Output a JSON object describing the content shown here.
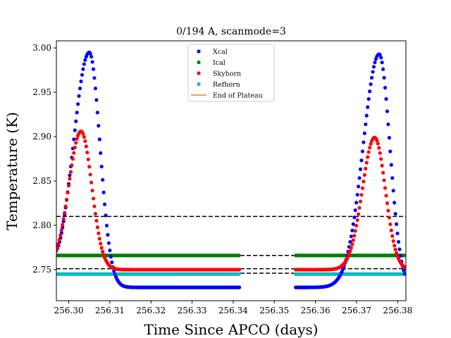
{
  "chart_data": {
    "type": "scatter",
    "title": "0/194 A, scanmode=3",
    "xlabel": "Time Since APCO (days)",
    "ylabel": "Temperature (K)",
    "xlim": [
      256.297,
      256.382
    ],
    "ylim": [
      2.715,
      3.008
    ],
    "x_ticks": [
      256.3,
      256.31,
      256.32,
      256.33,
      256.34,
      256.35,
      256.36,
      256.37,
      256.38
    ],
    "x_tick_labels": [
      "256.30",
      "256.31",
      "256.32",
      "256.33",
      "256.34",
      "256.35",
      "256.36",
      "256.37",
      "256.38"
    ],
    "y_ticks": [
      2.75,
      2.8,
      2.85,
      2.9,
      2.95,
      3.0
    ],
    "y_tick_labels": [
      "2.75",
      "2.80",
      "2.85",
      "2.90",
      "2.95",
      "3.00"
    ],
    "grid": false,
    "legend_position": "top-center",
    "colors": {
      "Xcal": "#0000ff",
      "Ical": "#008000",
      "Skyhorn": "#ff0000",
      "Refhorn": "#00bfbf",
      "End of Plateau": "#ff7f0e",
      "reference": "#000000"
    },
    "series": [
      {
        "name": "Xcal",
        "segments": [
          {
            "x_start": 256.297,
            "x_end": 256.3415,
            "dx": 0.00025,
            "curve": "bump",
            "baseline": 2.73,
            "baseline_start": 2.74,
            "peak_x": 256.305,
            "peak": 2.995,
            "width_left": 0.0039,
            "width_right": 0.0026,
            "decay": 0.0008
          },
          {
            "x_start": 256.3552,
            "x_end": 256.3818,
            "dx": 0.00025,
            "curve": "bump",
            "baseline": 2.73,
            "baseline_start": 2.73,
            "peak_x": 256.3755,
            "peak": 2.993,
            "width_left": 0.0039,
            "width_right": 0.0026,
            "decay": 0.0008
          }
        ]
      },
      {
        "name": "Ical",
        "segments": [
          {
            "x_start": 256.297,
            "x_end": 256.3415,
            "dx": 0.0003,
            "curve": "flat",
            "value": 2.766
          },
          {
            "x_start": 256.3552,
            "x_end": 256.3818,
            "dx": 0.0003,
            "curve": "flat",
            "value": 2.766
          }
        ]
      },
      {
        "name": "Skyhorn",
        "segments": [
          {
            "x_start": 256.297,
            "x_end": 256.3415,
            "dx": 0.00025,
            "curve": "bump",
            "baseline": 2.75,
            "baseline_start": 2.75,
            "peak_x": 256.303,
            "peak": 2.906,
            "width_left": 0.003,
            "width_right": 0.0026,
            "decay": 0.0008
          },
          {
            "x_start": 256.3552,
            "x_end": 256.3818,
            "dx": 0.00025,
            "curve": "bump",
            "baseline": 2.75,
            "baseline_start": 2.75,
            "peak_x": 256.3744,
            "peak": 2.899,
            "width_left": 0.003,
            "width_right": 0.0026,
            "decay": 0.0008
          }
        ]
      },
      {
        "name": "Refhorn",
        "segments": [
          {
            "x_start": 256.297,
            "x_end": 256.3415,
            "dx": 0.0003,
            "curve": "flat",
            "value": 2.745
          },
          {
            "x_start": 256.3552,
            "x_end": 256.3818,
            "dx": 0.0003,
            "curve": "flat",
            "value": 2.745
          }
        ]
      },
      {
        "name": "End of Plateau",
        "segments": []
      }
    ],
    "reference_lines": [
      {
        "y": 2.81,
        "style": "dashed",
        "color": "#000000"
      },
      {
        "y": 2.766,
        "style": "dashed",
        "color": "#000000"
      },
      {
        "y": 2.751,
        "style": "dashed",
        "color": "#000000"
      },
      {
        "y": 2.746,
        "style": "dashed",
        "color": "#000000"
      }
    ],
    "legend": [
      {
        "label": "Xcal",
        "marker": "dot"
      },
      {
        "label": "Ical",
        "marker": "dot"
      },
      {
        "label": "Skyhorn",
        "marker": "dot"
      },
      {
        "label": "Refhorn",
        "marker": "dot"
      },
      {
        "label": "End of Plateau",
        "marker": "line"
      }
    ]
  }
}
